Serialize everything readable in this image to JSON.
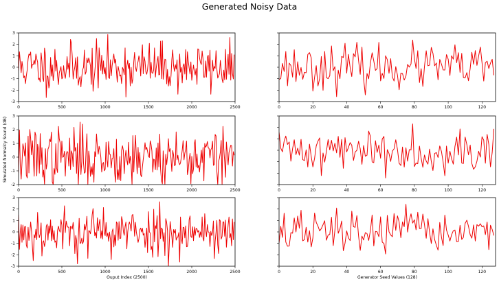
{
  "figure": {
    "title": "Generated Noisy Data",
    "shared_ylabel": "Simulated Normalcy Sound (dB)",
    "left_xlabel": "Ouput Index (2500)",
    "right_xlabel": "Generator Seed Values (128)"
  },
  "colors": {
    "series": "#ee0000",
    "axes": "#000000",
    "background": "#ffffff"
  },
  "chart_data": [
    {
      "type": "line",
      "panel": "row1-left",
      "n_points": 250,
      "x_step": 10,
      "xlim": [
        0,
        2500
      ],
      "ylim": [
        -3,
        3
      ],
      "xticks": [
        0,
        500,
        1000,
        1500,
        2000,
        2500
      ],
      "yticks": [
        -3,
        -2,
        -1,
        0,
        1,
        2,
        3
      ],
      "show_xtick_labels": true,
      "show_ytick_labels": true,
      "seed": 11,
      "amp": 1.05,
      "xlabel": "",
      "ylabel": ""
    },
    {
      "type": "line",
      "panel": "row1-right",
      "n_points": 128,
      "x_step": 1,
      "xlim": [
        0,
        128
      ],
      "ylim": [
        -3,
        3
      ],
      "xticks": [
        0,
        20,
        40,
        60,
        80,
        100,
        120
      ],
      "yticks": [
        -3,
        -2,
        -1,
        0,
        1,
        2,
        3
      ],
      "show_xtick_labels": true,
      "show_ytick_labels": false,
      "seed": 23,
      "amp": 0.95,
      "xlabel": "",
      "ylabel": ""
    },
    {
      "type": "line",
      "panel": "row2-left",
      "n_points": 250,
      "x_step": 10,
      "xlim": [
        0,
        2500
      ],
      "ylim": [
        -2,
        3
      ],
      "xticks": [
        0,
        500,
        1000,
        1500,
        2000,
        2500
      ],
      "yticks": [
        -2,
        -1,
        0,
        1,
        2,
        3
      ],
      "show_xtick_labels": true,
      "show_ytick_labels": true,
      "seed": 37,
      "amp": 1.05,
      "xlabel": "",
      "ylabel": ""
    },
    {
      "type": "line",
      "panel": "row2-right",
      "n_points": 128,
      "x_step": 1,
      "xlim": [
        0,
        128
      ],
      "ylim": [
        -3,
        3
      ],
      "xticks": [
        0,
        20,
        40,
        60,
        80,
        100,
        120
      ],
      "yticks": [
        -3,
        -2,
        -1,
        0,
        1,
        2,
        3
      ],
      "show_xtick_labels": true,
      "show_ytick_labels": false,
      "seed": 41,
      "amp": 0.95,
      "xlabel": "",
      "ylabel": ""
    },
    {
      "type": "line",
      "panel": "row3-left",
      "n_points": 250,
      "x_step": 10,
      "xlim": [
        0,
        2500
      ],
      "ylim": [
        -3,
        3
      ],
      "xticks": [
        0,
        500,
        1000,
        1500,
        2000,
        2500
      ],
      "yticks": [
        -3,
        -2,
        -1,
        0,
        1,
        2,
        3
      ],
      "show_xtick_labels": true,
      "show_ytick_labels": true,
      "seed": 53,
      "amp": 1.05,
      "xlabel": "Ouput Index (2500)",
      "ylabel": ""
    },
    {
      "type": "line",
      "panel": "row3-right",
      "n_points": 128,
      "x_step": 1,
      "xlim": [
        0,
        128
      ],
      "ylim": [
        -3,
        3
      ],
      "xticks": [
        0,
        20,
        40,
        60,
        80,
        100,
        120
      ],
      "yticks": [
        -3,
        -2,
        -1,
        0,
        1,
        2,
        3
      ],
      "show_xtick_labels": true,
      "show_ytick_labels": false,
      "seed": 67,
      "amp": 0.95,
      "xlabel": "Generator Seed Values (128)",
      "ylabel": ""
    }
  ]
}
